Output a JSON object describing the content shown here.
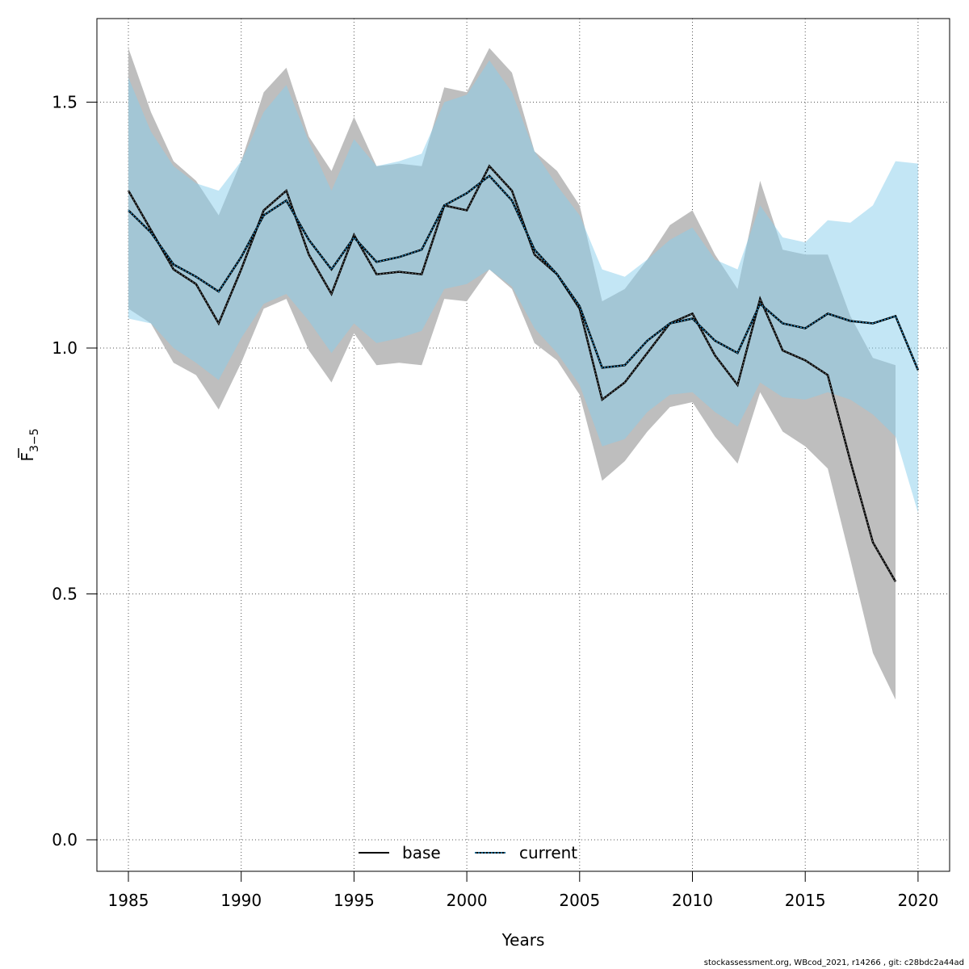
{
  "chart_data": {
    "type": "line",
    "xlabel": "Years",
    "ylabel_main": "F",
    "ylabel_sub": "3−5",
    "xlim": [
      1985,
      2020
    ],
    "ylim": [
      0.0,
      1.6
    ],
    "x_ticks": [
      "1985",
      "1990",
      "1995",
      "2000",
      "2005",
      "2010",
      "2015",
      "2020"
    ],
    "y_ticks": [
      "0.0",
      "0.5",
      "1.0",
      "1.5"
    ],
    "grid": true,
    "legend_position": "bottom-center",
    "series": [
      {
        "name": "base",
        "color": "#000000",
        "band_color": "#bebebe",
        "line_style": "solid",
        "x": [
          1985,
          1986,
          1987,
          1988,
          1989,
          1990,
          1991,
          1992,
          1993,
          1994,
          1995,
          1996,
          1997,
          1998,
          1999,
          2000,
          2001,
          2002,
          2003,
          2004,
          2005,
          2006,
          2007,
          2008,
          2009,
          2010,
          2011,
          2012,
          2013,
          2014,
          2015,
          2016,
          2017,
          2018,
          2019
        ],
        "y": [
          1.32,
          1.24,
          1.16,
          1.13,
          1.05,
          1.16,
          1.28,
          1.32,
          1.19,
          1.11,
          1.23,
          1.15,
          1.155,
          1.15,
          1.29,
          1.28,
          1.37,
          1.32,
          1.19,
          1.15,
          1.08,
          0.895,
          0.93,
          0.99,
          1.05,
          1.07,
          0.985,
          0.925,
          1.1,
          0.995,
          0.975,
          0.945,
          0.77,
          0.605,
          0.525
        ],
        "lower": [
          1.08,
          1.05,
          0.97,
          0.945,
          0.875,
          0.97,
          1.08,
          1.1,
          0.995,
          0.93,
          1.03,
          0.965,
          0.97,
          0.965,
          1.1,
          1.095,
          1.16,
          1.12,
          1.01,
          0.975,
          0.905,
          0.73,
          0.77,
          0.83,
          0.88,
          0.89,
          0.82,
          0.765,
          0.91,
          0.83,
          0.8,
          0.755,
          0.57,
          0.38,
          0.285
        ],
        "upper": [
          1.61,
          1.48,
          1.38,
          1.34,
          1.27,
          1.38,
          1.52,
          1.57,
          1.43,
          1.36,
          1.47,
          1.37,
          1.375,
          1.37,
          1.53,
          1.52,
          1.61,
          1.56,
          1.4,
          1.36,
          1.29,
          1.095,
          1.12,
          1.18,
          1.25,
          1.28,
          1.19,
          1.12,
          1.34,
          1.2,
          1.19,
          1.19,
          1.065,
          0.98,
          0.965
        ]
      },
      {
        "name": "current",
        "color": "#00508c",
        "band_color": "#87ceeb",
        "line_style": "dotted",
        "x": [
          1985,
          1986,
          1987,
          1988,
          1989,
          1990,
          1991,
          1992,
          1993,
          1994,
          1995,
          1996,
          1997,
          1998,
          1999,
          2000,
          2001,
          2002,
          2003,
          2004,
          2005,
          2006,
          2007,
          2008,
          2009,
          2010,
          2011,
          2012,
          2013,
          2014,
          2015,
          2016,
          2017,
          2018,
          2019,
          2020
        ],
        "y": [
          1.28,
          1.235,
          1.17,
          1.145,
          1.115,
          1.185,
          1.27,
          1.3,
          1.22,
          1.16,
          1.225,
          1.175,
          1.185,
          1.2,
          1.29,
          1.315,
          1.35,
          1.3,
          1.2,
          1.15,
          1.085,
          0.96,
          0.965,
          1.015,
          1.05,
          1.06,
          1.015,
          0.99,
          1.09,
          1.05,
          1.04,
          1.07,
          1.055,
          1.05,
          1.065,
          0.955
        ],
        "lower": [
          1.06,
          1.05,
          1.0,
          0.97,
          0.935,
          1.02,
          1.09,
          1.11,
          1.055,
          0.99,
          1.05,
          1.01,
          1.02,
          1.035,
          1.12,
          1.13,
          1.16,
          1.125,
          1.04,
          0.99,
          0.925,
          0.8,
          0.815,
          0.87,
          0.905,
          0.91,
          0.87,
          0.84,
          0.93,
          0.9,
          0.895,
          0.91,
          0.895,
          0.865,
          0.82,
          0.665
        ],
        "upper": [
          1.55,
          1.44,
          1.37,
          1.335,
          1.32,
          1.38,
          1.48,
          1.535,
          1.42,
          1.32,
          1.425,
          1.37,
          1.38,
          1.395,
          1.5,
          1.515,
          1.585,
          1.52,
          1.4,
          1.33,
          1.27,
          1.16,
          1.145,
          1.18,
          1.22,
          1.245,
          1.18,
          1.16,
          1.29,
          1.225,
          1.215,
          1.26,
          1.255,
          1.29,
          1.38,
          1.375
        ]
      }
    ]
  },
  "footer": "stockassessment.org, WBcod_2021, r14266 , git: c28bdc2a44ad"
}
